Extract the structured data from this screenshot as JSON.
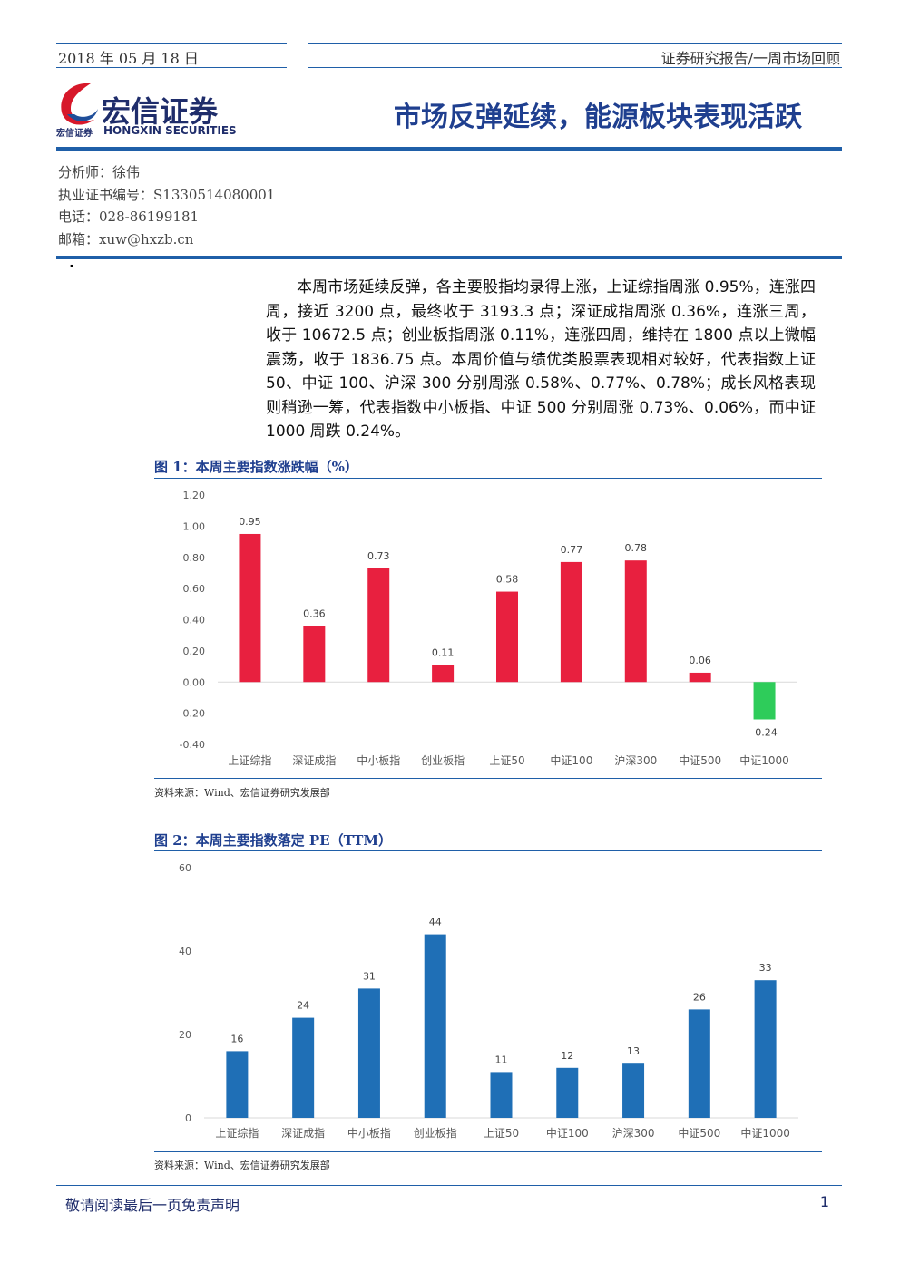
{
  "header": {
    "date": "2018 年 05 月 18 日",
    "report_type": "证券研究报告/一周市场回顾",
    "logo_name": "宏信证券",
    "logo_english": "HONGXIN SECURITIES",
    "logo_small": "宏信证券",
    "title": "市场反弹延续，能源板块表现活跃"
  },
  "analyst": [
    "分析师：徐伟",
    "执业证书编号：S1330514080001",
    "电话：028-86199181",
    "邮箱：xuw@hxzb.cn"
  ],
  "bullet": "·",
  "body": "本周市场延续反弹，各主要股指均录得上涨，上证综指周涨 0.95%，连涨四周，接近 3200 点，最终收于 3193.3 点；深证成指周涨 0.36%，连涨三周，收于 10672.5 点；创业板指周涨 0.11%，连涨四周，维持在 1800 点以上微幅震荡，收于 1836.75 点。本周价值与绩优类股票表现相对较好，代表指数上证 50、中证 100、沪深 300 分别周涨 0.58%、0.77%、0.78%；成长风格表现则稍逊一筹，代表指数中小板指、中证 500 分别周涨 0.73%、0.06%，而中证 1000 周跌 0.24%。",
  "figures": [
    {
      "caption": "图 1：本周主要指数涨跌幅（%）",
      "source": "资料来源：Wind、宏信证券研究发展部",
      "chart": {
        "type": "bar",
        "categories": [
          "上证综指",
          "深证成指",
          "中小板指",
          "创业板指",
          "上证50",
          "中证100",
          "沪深300",
          "中证500",
          "中证1000"
        ],
        "values": [
          0.95,
          0.36,
          0.73,
          0.11,
          0.58,
          0.77,
          0.78,
          0.06,
          -0.24
        ],
        "color": "#e8203f",
        "negative_color": "#2ecc5a",
        "ylim": [
          -0.4,
          1.2
        ],
        "yticks": [
          {
            "value": -0.4,
            "label": "-0.40"
          },
          {
            "value": -0.2,
            "label": "-0.20"
          },
          {
            "value": 0,
            "label": "0.00"
          },
          {
            "value": 0.2,
            "label": "0.20"
          },
          {
            "value": 0.4,
            "label": "0.40"
          },
          {
            "value": 0.6,
            "label": "0.60"
          },
          {
            "value": 0.8,
            "label": "0.80"
          },
          {
            "value": 1,
            "label": "1.00"
          },
          {
            "value": 1.2,
            "label": "1.20"
          }
        ],
        "grid": false
      }
    },
    {
      "caption": "图 2：本周主要指数落定 PE（TTM）",
      "source": "资料来源：Wind、宏信证券研究发展部",
      "chart": {
        "type": "bar",
        "categories": [
          "上证综指",
          "深证成指",
          "中小板指",
          "创业板指",
          "上证50",
          "中证100",
          "沪深300",
          "中证500",
          "中证1000"
        ],
        "values": [
          16,
          24,
          31,
          44,
          11,
          12,
          13,
          26,
          33
        ],
        "color": "#1f6fb6",
        "negative_color": "#1f6fb6",
        "ylim": [
          0,
          60
        ],
        "yticks": [
          0,
          20,
          40,
          60
        ],
        "grid": false
      }
    }
  ],
  "footer": {
    "disclaimer": "敬请阅读最后一页免责声明",
    "page": "1"
  }
}
